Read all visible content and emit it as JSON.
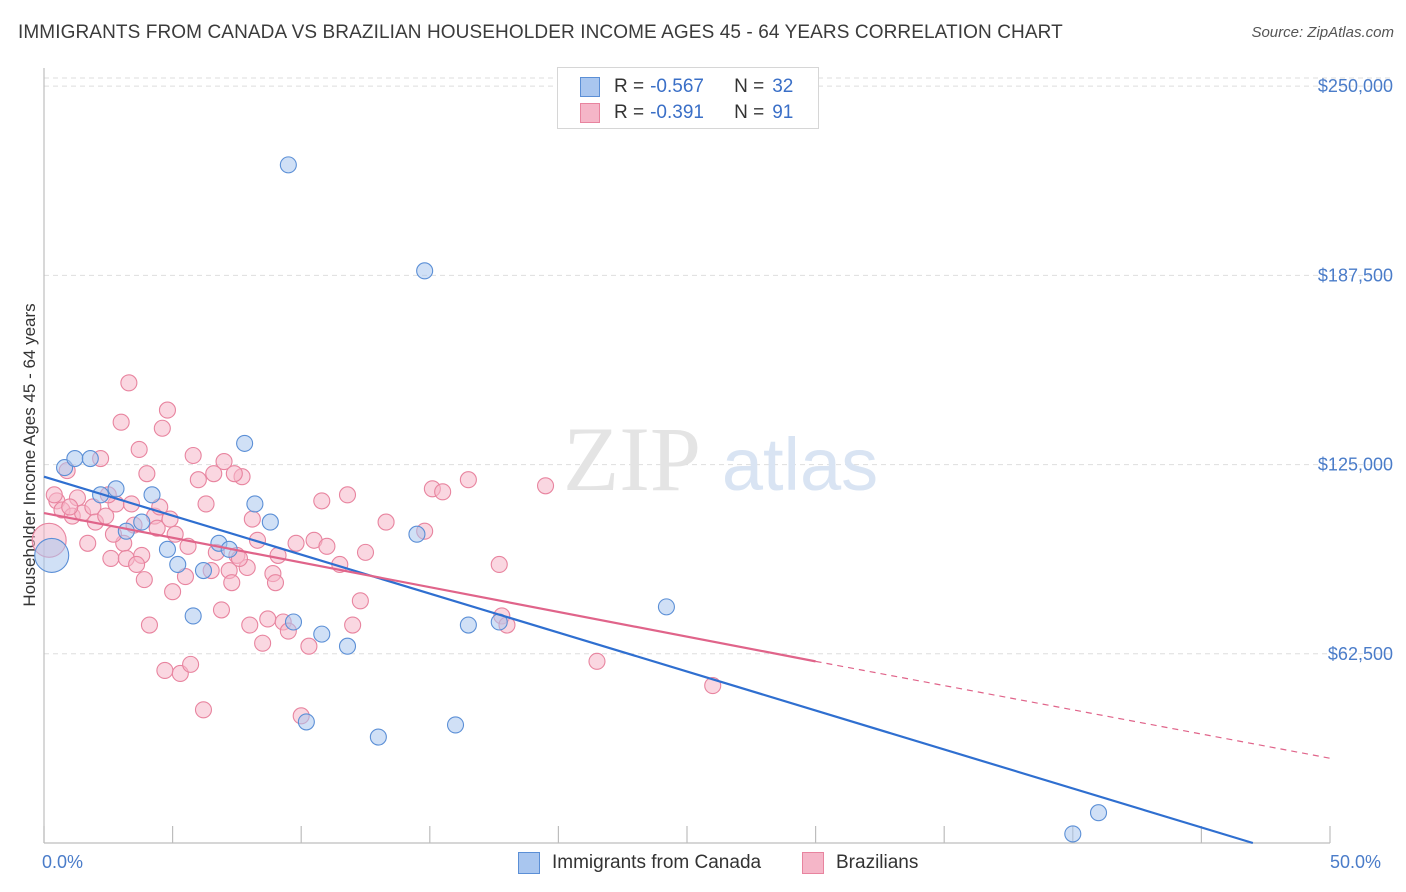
{
  "header": {
    "title": "IMMIGRANTS FROM CANADA VS BRAZILIAN HOUSEHOLDER INCOME AGES 45 - 64 YEARS CORRELATION CHART",
    "source": "Source: ZipAtlas.com"
  },
  "watermark": {
    "zip": "ZIP",
    "atlas": "atlas"
  },
  "colors": {
    "blue_fill": "#a9c6ef",
    "blue_stroke": "#5b8fd6",
    "blue_line": "#2f6fd0",
    "pink_fill": "#f5b6c8",
    "pink_stroke": "#e8849f",
    "pink_line": "#e0648a",
    "tick_text": "#4a7cc9",
    "grid": "#dedede"
  },
  "legend": {
    "rows": [
      {
        "r_label": "R =",
        "r_value": "-0.567",
        "n_label": "N =",
        "n_value": "32"
      },
      {
        "r_label": "R =",
        "r_value": "-0.391",
        "n_label": "N =",
        "n_value": "91"
      }
    ]
  },
  "bottom_legend": {
    "items": [
      "Immigrants from Canada",
      "Brazilians"
    ]
  },
  "chart_data": {
    "type": "scatter",
    "title": "IMMIGRANTS FROM CANADA VS BRAZILIAN HOUSEHOLDER INCOME AGES 45 - 64 YEARS CORRELATION CHART",
    "xlabel": "",
    "ylabel": "Householder Income Ages 45 - 64 years",
    "xlim": [
      0,
      50
    ],
    "ylim": [
      0,
      256000
    ],
    "x_tick_labels": [
      "0.0%",
      "50.0%"
    ],
    "y_ticks": [
      62500,
      125000,
      187500,
      250000
    ],
    "y_tick_labels": [
      "$62,500",
      "$125,000",
      "$187,500",
      "$250,000"
    ],
    "grid": true,
    "legend_position": "top-center",
    "series": [
      {
        "name": "Immigrants from Canada",
        "points": [
          [
            0.3,
            95000
          ],
          [
            0.8,
            124000
          ],
          [
            1.2,
            127000
          ],
          [
            1.8,
            127000
          ],
          [
            2.2,
            115000
          ],
          [
            2.8,
            117000
          ],
          [
            3.2,
            103000
          ],
          [
            3.8,
            106000
          ],
          [
            4.2,
            115000
          ],
          [
            4.8,
            97000
          ],
          [
            5.2,
            92000
          ],
          [
            5.8,
            75000
          ],
          [
            6.2,
            90000
          ],
          [
            6.8,
            99000
          ],
          [
            7.2,
            97000
          ],
          [
            7.8,
            132000
          ],
          [
            8.2,
            112000
          ],
          [
            8.8,
            106000
          ],
          [
            9.5,
            224000
          ],
          [
            9.7,
            73000
          ],
          [
            10.2,
            40000
          ],
          [
            10.8,
            69000
          ],
          [
            11.8,
            65000
          ],
          [
            13.0,
            35000
          ],
          [
            14.5,
            102000
          ],
          [
            14.8,
            189000
          ],
          [
            16.0,
            39000
          ],
          [
            16.5,
            72000
          ],
          [
            17.7,
            73000
          ],
          [
            24.2,
            78000
          ],
          [
            40.0,
            3000
          ],
          [
            41.0,
            10000
          ]
        ],
        "trend": {
          "x": [
            0,
            47
          ],
          "y": [
            121000,
            0
          ]
        }
      },
      {
        "name": "Brazilians",
        "points": [
          [
            0.2,
            100000
          ],
          [
            0.5,
            113000
          ],
          [
            0.7,
            110000
          ],
          [
            0.9,
            123000
          ],
          [
            1.1,
            108000
          ],
          [
            1.3,
            114000
          ],
          [
            1.5,
            109000
          ],
          [
            1.7,
            99000
          ],
          [
            1.9,
            111000
          ],
          [
            2.0,
            106000
          ],
          [
            2.2,
            127000
          ],
          [
            2.4,
            108000
          ],
          [
            2.6,
            94000
          ],
          [
            2.8,
            112000
          ],
          [
            3.0,
            139000
          ],
          [
            3.1,
            99000
          ],
          [
            3.2,
            94000
          ],
          [
            3.3,
            152000
          ],
          [
            3.4,
            112000
          ],
          [
            3.5,
            105000
          ],
          [
            3.7,
            130000
          ],
          [
            3.8,
            95000
          ],
          [
            3.9,
            87000
          ],
          [
            4.0,
            122000
          ],
          [
            4.1,
            72000
          ],
          [
            4.3,
            108000
          ],
          [
            4.5,
            111000
          ],
          [
            4.6,
            137000
          ],
          [
            4.7,
            57000
          ],
          [
            4.8,
            143000
          ],
          [
            5.0,
            83000
          ],
          [
            5.1,
            102000
          ],
          [
            5.3,
            56000
          ],
          [
            5.5,
            88000
          ],
          [
            5.7,
            59000
          ],
          [
            5.8,
            128000
          ],
          [
            6.0,
            120000
          ],
          [
            6.2,
            44000
          ],
          [
            6.3,
            112000
          ],
          [
            6.5,
            90000
          ],
          [
            6.7,
            96000
          ],
          [
            6.9,
            77000
          ],
          [
            7.0,
            126000
          ],
          [
            7.2,
            90000
          ],
          [
            7.3,
            86000
          ],
          [
            7.5,
            95000
          ],
          [
            7.7,
            121000
          ],
          [
            7.9,
            91000
          ],
          [
            8.0,
            72000
          ],
          [
            8.3,
            100000
          ],
          [
            8.5,
            66000
          ],
          [
            8.7,
            74000
          ],
          [
            8.9,
            89000
          ],
          [
            9.1,
            95000
          ],
          [
            9.3,
            73000
          ],
          [
            9.5,
            70000
          ],
          [
            9.8,
            99000
          ],
          [
            10.0,
            42000
          ],
          [
            10.3,
            65000
          ],
          [
            10.5,
            100000
          ],
          [
            10.8,
            113000
          ],
          [
            11.5,
            92000
          ],
          [
            11.8,
            115000
          ],
          [
            12.0,
            72000
          ],
          [
            12.3,
            80000
          ],
          [
            13.3,
            106000
          ],
          [
            14.8,
            103000
          ],
          [
            15.1,
            117000
          ],
          [
            17.7,
            92000
          ],
          [
            17.8,
            75000
          ],
          [
            18.0,
            72000
          ],
          [
            19.5,
            118000
          ],
          [
            21.5,
            60000
          ],
          [
            26.0,
            52000
          ],
          [
            0.4,
            115000
          ],
          [
            1.0,
            111000
          ],
          [
            2.5,
            115000
          ],
          [
            2.7,
            102000
          ],
          [
            3.6,
            92000
          ],
          [
            4.4,
            104000
          ],
          [
            4.9,
            107000
          ],
          [
            5.6,
            98000
          ],
          [
            6.6,
            122000
          ],
          [
            7.4,
            122000
          ],
          [
            7.6,
            94000
          ],
          [
            8.1,
            107000
          ],
          [
            9.0,
            86000
          ],
          [
            11.0,
            98000
          ],
          [
            12.5,
            96000
          ],
          [
            15.5,
            116000
          ],
          [
            16.5,
            120000
          ]
        ],
        "trend": {
          "x": [
            0,
            30
          ],
          "y": [
            109000,
            60000
          ]
        },
        "trend_extension": {
          "x": [
            30,
            50
          ],
          "y": [
            60000,
            28000
          ]
        }
      }
    ]
  }
}
